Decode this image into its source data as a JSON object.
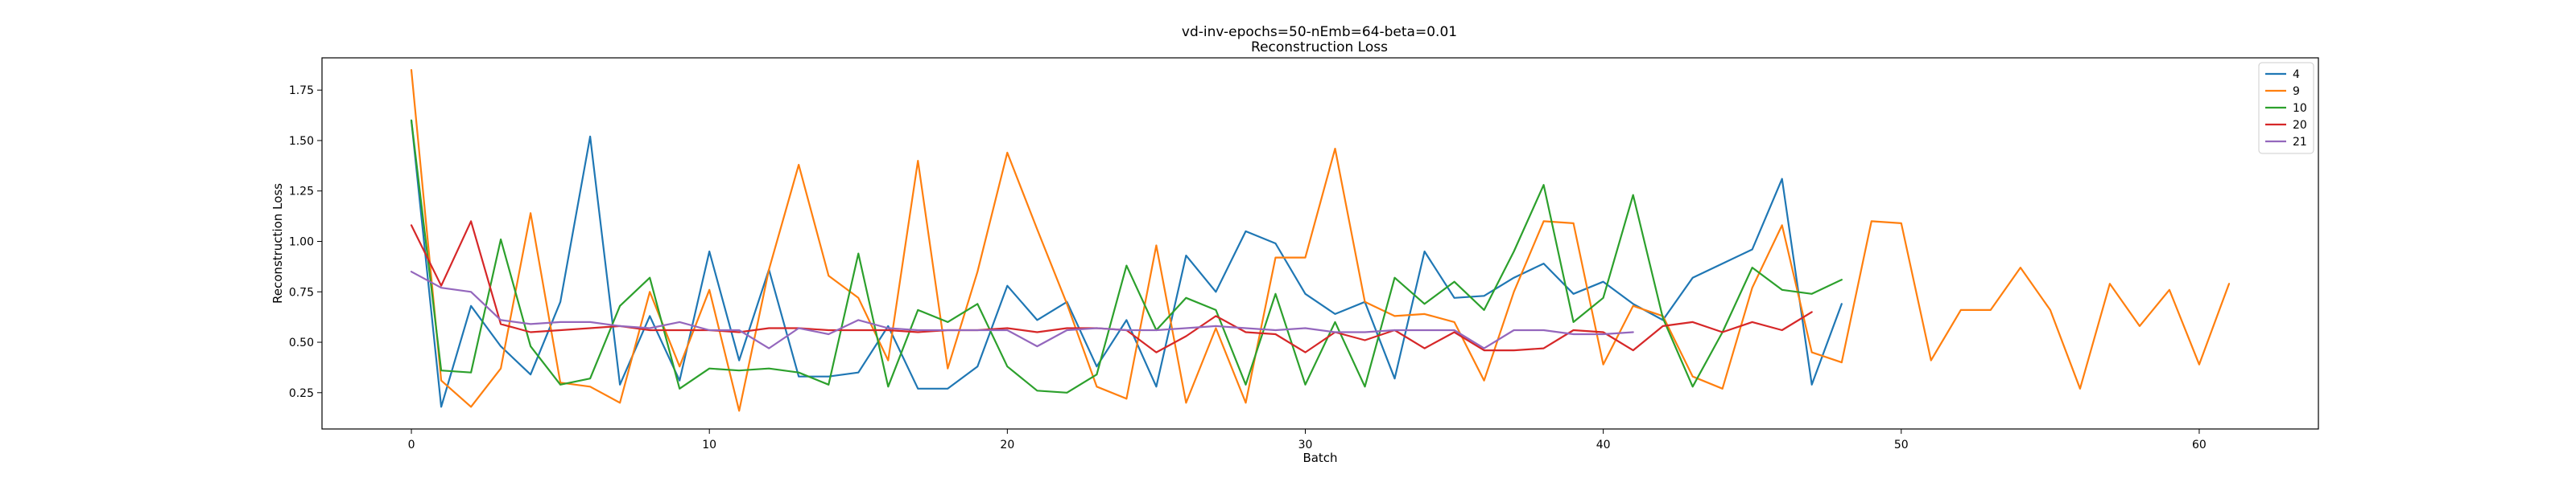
{
  "chart_data": {
    "type": "line",
    "title": "vd-inv-epochs=50-nEmb=64-beta=0.01",
    "subtitle": "Reconstruction Loss",
    "xlabel": "Batch",
    "ylabel": "Reconstruction Loss",
    "xlim": [
      -3,
      64
    ],
    "ylim": [
      0.07,
      1.91
    ],
    "xticks": [
      0,
      10,
      20,
      30,
      40,
      50,
      60
    ],
    "yticks": [
      0.25,
      0.5,
      0.75,
      1.0,
      1.25,
      1.5,
      1.75
    ],
    "ytick_labels": [
      "0.25",
      "0.50",
      "0.75",
      "1.00",
      "1.25",
      "1.50",
      "1.75"
    ],
    "grid": false,
    "legend_position": "top-right",
    "series": [
      {
        "name": "4",
        "color": "#1f77b4",
        "values": [
          1.6,
          0.18,
          0.68,
          0.48,
          0.34,
          0.7,
          1.52,
          0.29,
          0.63,
          0.31,
          0.95,
          0.41,
          0.86,
          0.33,
          0.33,
          0.35,
          0.58,
          0.27,
          0.27,
          0.38,
          0.78,
          0.61,
          0.7,
          0.38,
          0.61,
          0.28,
          0.93,
          0.75,
          1.05,
          0.99,
          0.74,
          0.64,
          0.7,
          0.32,
          0.95,
          0.72,
          0.73,
          0.82,
          0.89,
          0.74,
          0.8,
          0.69,
          0.61,
          0.82,
          0.89,
          0.96,
          1.31,
          0.29,
          0.69
        ]
      },
      {
        "name": "9",
        "color": "#ff7f0e",
        "values": [
          1.85,
          0.31,
          0.18,
          0.37,
          1.14,
          0.3,
          0.28,
          0.2,
          0.75,
          0.38,
          0.76,
          0.16,
          0.86,
          1.38,
          0.83,
          0.72,
          0.41,
          1.4,
          0.37,
          0.85,
          1.44,
          1.06,
          0.69,
          0.28,
          0.22,
          0.98,
          0.2,
          0.57,
          0.2,
          0.92,
          0.92,
          1.46,
          0.7,
          0.63,
          0.64,
          0.6,
          0.31,
          0.75,
          1.1,
          1.09,
          0.39,
          0.68,
          0.63,
          0.33,
          0.27,
          0.77,
          1.08,
          0.45,
          0.4,
          1.1,
          1.09,
          0.41,
          0.66,
          0.66,
          0.87,
          0.66,
          0.27,
          0.79,
          0.58,
          0.76,
          0.39,
          0.79
        ]
      },
      {
        "name": "10",
        "color": "#2ca02c",
        "values": [
          1.6,
          0.36,
          0.35,
          1.01,
          0.48,
          0.29,
          0.32,
          0.68,
          0.82,
          0.27,
          0.37,
          0.36,
          0.37,
          0.35,
          0.29,
          0.94,
          0.28,
          0.66,
          0.6,
          0.69,
          0.38,
          0.26,
          0.25,
          0.34,
          0.88,
          0.56,
          0.72,
          0.66,
          0.29,
          0.74,
          0.29,
          0.6,
          0.28,
          0.82,
          0.69,
          0.8,
          0.66,
          0.95,
          1.28,
          0.6,
          0.72,
          1.23,
          0.62,
          0.28,
          0.55,
          0.87,
          0.76,
          0.74,
          0.81
        ]
      },
      {
        "name": "20",
        "color": "#d62728",
        "values": [
          1.08,
          0.78,
          1.1,
          0.59,
          0.55,
          0.56,
          0.57,
          0.58,
          0.56,
          0.56,
          0.56,
          0.55,
          0.57,
          0.57,
          0.56,
          0.56,
          0.56,
          0.55,
          0.56,
          0.56,
          0.57,
          0.55,
          0.57,
          0.57,
          0.56,
          0.45,
          0.53,
          0.63,
          0.55,
          0.54,
          0.45,
          0.55,
          0.51,
          0.56,
          0.47,
          0.55,
          0.46,
          0.46,
          0.47,
          0.56,
          0.55,
          0.46,
          0.58,
          0.6,
          0.55,
          0.6,
          0.56,
          0.65
        ]
      },
      {
        "name": "21",
        "color": "#9467bd",
        "values": [
          0.85,
          0.77,
          0.75,
          0.61,
          0.59,
          0.6,
          0.6,
          0.58,
          0.57,
          0.6,
          0.56,
          0.56,
          0.47,
          0.57,
          0.54,
          0.61,
          0.57,
          0.56,
          0.56,
          0.56,
          0.56,
          0.48,
          0.56,
          0.57,
          0.56,
          0.56,
          0.57,
          0.58,
          0.57,
          0.56,
          0.57,
          0.55,
          0.55,
          0.56,
          0.56,
          0.56,
          0.47,
          0.56,
          0.56,
          0.54,
          0.54,
          0.55
        ]
      }
    ]
  }
}
